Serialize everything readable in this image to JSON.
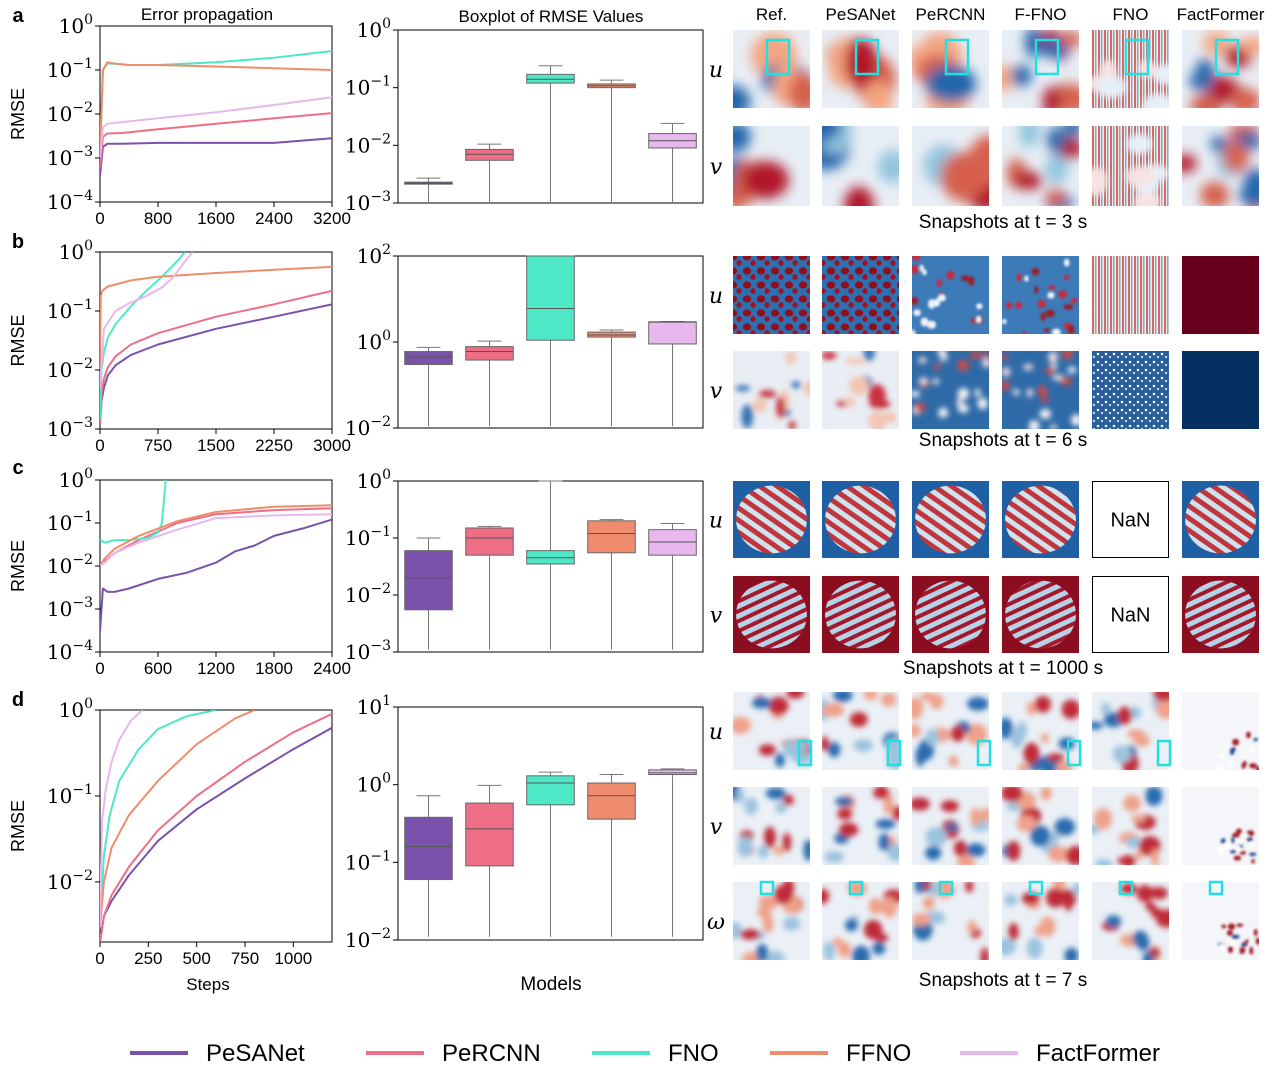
{
  "colors": {
    "PeSANet": "#7b52ab",
    "PeRCNN": "#ee6e86",
    "FNO": "#4fe8c6",
    "FFNO": "#f08c6e",
    "FactFormer": "#e8b7ee",
    "highlight_box": "#22e0e0"
  },
  "legend": [
    "PeSANet",
    "PeRCNN",
    "FNO",
    "FFNO",
    "FactFormer"
  ],
  "headers": {
    "error_propagation": "Error propagation",
    "boxplot": "Boxplot of RMSE Values",
    "snapshot_models": [
      "Ref.",
      "PeSANet",
      "PeRCNN",
      "F-FNO",
      "FNO",
      "FactFormer"
    ]
  },
  "panel_letters": [
    "a",
    "b",
    "c",
    "d"
  ],
  "ylabel": "RMSE",
  "xlabel_steps": "Steps",
  "xlabel_models": "Models",
  "snapshot_captions": [
    "Snapshots at t = 3 s",
    "Snapshots at t = 6 s",
    "Snapshots at t = 1000 s",
    "Snapshots at t = 7 s"
  ],
  "nan_label": "NaN",
  "field_symbols": {
    "u": "u",
    "v": "v",
    "w": "ω"
  },
  "chart_data": [
    {
      "type": "line",
      "panel": "a",
      "title": "Error propagation",
      "ylabel": "RMSE",
      "yscale": "log",
      "xlim": [
        0,
        3200
      ],
      "ylim": [
        0.0001,
        1
      ],
      "xticks": [
        "0",
        "800",
        "1600",
        "2400",
        "3200"
      ],
      "yticks": [
        "10^0",
        "10^-1",
        "10^-2",
        "10^-3",
        "10^-4"
      ],
      "series": [
        {
          "name": "PeSANet",
          "x": [
            0,
            40,
            100,
            300,
            800,
            1600,
            2400,
            3200
          ],
          "y": [
            0.0004,
            0.0018,
            0.0021,
            0.0021,
            0.0022,
            0.0022,
            0.0022,
            0.0028
          ]
        },
        {
          "name": "PeRCNN",
          "x": [
            0,
            40,
            100,
            300,
            800,
            1600,
            2400,
            3200
          ],
          "y": [
            0.0006,
            0.003,
            0.0036,
            0.0037,
            0.0045,
            0.006,
            0.008,
            0.0105
          ]
        },
        {
          "name": "FNO",
          "x": [
            0,
            40,
            100,
            200,
            400,
            800,
            1600,
            2400,
            3200
          ],
          "y": [
            0.0012,
            0.1,
            0.14,
            0.14,
            0.13,
            0.13,
            0.15,
            0.19,
            0.27
          ]
        },
        {
          "name": "FFNO",
          "x": [
            0,
            40,
            100,
            200,
            400,
            800,
            1600,
            2400,
            3200
          ],
          "y": [
            0.0012,
            0.1,
            0.15,
            0.14,
            0.13,
            0.13,
            0.12,
            0.11,
            0.1
          ]
        },
        {
          "name": "FactFormer",
          "x": [
            0,
            40,
            100,
            300,
            800,
            1600,
            2400,
            3200
          ],
          "y": [
            0.001,
            0.005,
            0.006,
            0.0065,
            0.008,
            0.011,
            0.016,
            0.024
          ]
        }
      ]
    },
    {
      "type": "box",
      "panel": "a",
      "title": "Boxplot of RMSE Values",
      "yscale": "log",
      "ylim": [
        0.001,
        1
      ],
      "yticks": [
        "10^0",
        "10^-1",
        "10^-2",
        "10^-3"
      ],
      "boxes": [
        {
          "name": "PeSANet",
          "min": 0.00095,
          "q1": 0.0022,
          "median": 0.0022,
          "q3": 0.0023,
          "max": 0.0027
        },
        {
          "name": "PeRCNN",
          "min": 0.00095,
          "q1": 0.0055,
          "median": 0.007,
          "q3": 0.0085,
          "max": 0.0105
        },
        {
          "name": "FNO",
          "min": 0.00095,
          "q1": 0.12,
          "median": 0.14,
          "q3": 0.17,
          "max": 0.24
        },
        {
          "name": "FFNO",
          "min": 0.00095,
          "q1": 0.1,
          "median": 0.108,
          "q3": 0.116,
          "max": 0.135
        },
        {
          "name": "FactFormer",
          "min": 0.00095,
          "q1": 0.009,
          "median": 0.012,
          "q3": 0.016,
          "max": 0.024
        }
      ]
    },
    {
      "type": "line",
      "panel": "b",
      "ylabel": "RMSE",
      "yscale": "log",
      "xlim": [
        0,
        3000
      ],
      "ylim": [
        0.001,
        1
      ],
      "xticks": [
        "0",
        "750",
        "1500",
        "2250",
        "3000"
      ],
      "yticks": [
        "10^0",
        "10^-1",
        "10^-2",
        "10^-3"
      ],
      "series": [
        {
          "name": "PeSANet",
          "x": [
            0,
            20,
            50,
            100,
            200,
            400,
            750,
            1500,
            2250,
            3000
          ],
          "y": [
            0.0012,
            0.003,
            0.005,
            0.008,
            0.012,
            0.018,
            0.027,
            0.05,
            0.08,
            0.13
          ]
        },
        {
          "name": "PeRCNN",
          "x": [
            0,
            20,
            50,
            100,
            200,
            400,
            750,
            1500,
            2250,
            3000
          ],
          "y": [
            0.0012,
            0.004,
            0.007,
            0.011,
            0.017,
            0.027,
            0.042,
            0.08,
            0.13,
            0.22
          ]
        },
        {
          "name": "FNO",
          "x": [
            0,
            20,
            50,
            100,
            200,
            400,
            600,
            800,
            1000,
            1100
          ],
          "y": [
            0.0015,
            0.01,
            0.02,
            0.035,
            0.06,
            0.12,
            0.22,
            0.38,
            0.7,
            1.0
          ]
        },
        {
          "name": "FFNO",
          "x": [
            0,
            10,
            30,
            100,
            400,
            750,
            1500,
            2250,
            3000
          ],
          "y": [
            0.01,
            0.18,
            0.22,
            0.26,
            0.33,
            0.38,
            0.44,
            0.5,
            0.56
          ]
        },
        {
          "name": "FactFormer",
          "x": [
            0,
            50,
            200,
            400,
            600,
            800,
            950,
            1100,
            1200
          ],
          "y": [
            0.005,
            0.05,
            0.1,
            0.14,
            0.18,
            0.25,
            0.38,
            0.7,
            1.0
          ]
        }
      ]
    },
    {
      "type": "box",
      "panel": "b",
      "yscale": "log",
      "ylim": [
        0.01,
        100
      ],
      "yticks": [
        "10^2",
        "10^0",
        "10^-2"
      ],
      "boxes": [
        {
          "name": "PeSANet",
          "min": 0.011,
          "q1": 0.3,
          "median": 0.45,
          "q3": 0.6,
          "max": 0.75
        },
        {
          "name": "PeRCNN",
          "min": 0.011,
          "q1": 0.38,
          "median": 0.6,
          "q3": 0.78,
          "max": 1.05
        },
        {
          "name": "FNO",
          "min": 0.011,
          "q1": 1.1,
          "median": 6.0,
          "q3": 100,
          "max": 100
        },
        {
          "name": "FFNO",
          "min": 0.011,
          "q1": 1.3,
          "median": 1.45,
          "q3": 1.7,
          "max": 1.9
        },
        {
          "name": "FactFormer",
          "min": 0.011,
          "q1": 0.9,
          "median": 2.9,
          "q3": 2.95,
          "max": 3.0
        }
      ]
    },
    {
      "type": "line",
      "panel": "c",
      "ylabel": "RMSE",
      "yscale": "log",
      "xlim": [
        0,
        2400
      ],
      "ylim": [
        0.0001,
        1
      ],
      "xticks": [
        "0",
        "600",
        "1200",
        "1800",
        "2400"
      ],
      "yticks": [
        "10^0",
        "10^-1",
        "10^-2",
        "10^-3",
        "10^-4"
      ],
      "series": [
        {
          "name": "PeSANet",
          "x": [
            0,
            30,
            80,
            150,
            300,
            600,
            900,
            1200,
            1400,
            1600,
            1800,
            2100,
            2400
          ],
          "y": [
            0.0003,
            0.003,
            0.0025,
            0.0025,
            0.003,
            0.005,
            0.007,
            0.012,
            0.022,
            0.03,
            0.05,
            0.075,
            0.12
          ]
        },
        {
          "name": "PeRCNN",
          "x": [
            0,
            50,
            150,
            400,
            800,
            1200,
            1800,
            2400
          ],
          "y": [
            0.01,
            0.013,
            0.02,
            0.04,
            0.1,
            0.16,
            0.2,
            0.22
          ]
        },
        {
          "name": "FNO",
          "x": [
            0,
            50,
            150,
            300,
            500,
            600,
            640,
            680
          ],
          "y": [
            0.04,
            0.035,
            0.04,
            0.04,
            0.045,
            0.06,
            0.1,
            1.0
          ]
        },
        {
          "name": "FFNO",
          "x": [
            0,
            50,
            150,
            400,
            800,
            1200,
            1800,
            2400
          ],
          "y": [
            0.01,
            0.015,
            0.025,
            0.05,
            0.11,
            0.18,
            0.24,
            0.26
          ]
        },
        {
          "name": "FactFormer",
          "x": [
            0,
            50,
            150,
            400,
            800,
            1200,
            1800,
            2400
          ],
          "y": [
            0.01,
            0.012,
            0.02,
            0.035,
            0.07,
            0.13,
            0.15,
            0.16
          ]
        }
      ]
    },
    {
      "type": "box",
      "panel": "c",
      "yscale": "log",
      "ylim": [
        0.001,
        1
      ],
      "yticks": [
        "10^0",
        "10^-1",
        "10^-2",
        "10^-3"
      ],
      "boxes": [
        {
          "name": "PeSANet",
          "min": 0.0011,
          "q1": 0.0055,
          "median": 0.02,
          "q3": 0.06,
          "max": 0.1
        },
        {
          "name": "PeRCNN",
          "min": 0.0011,
          "q1": 0.05,
          "median": 0.1,
          "q3": 0.15,
          "max": 0.16
        },
        {
          "name": "FNO",
          "min": 0.0011,
          "q1": 0.035,
          "median": 0.045,
          "q3": 0.06,
          "max": 1.0
        },
        {
          "name": "FFNO",
          "min": 0.0011,
          "q1": 0.055,
          "median": 0.12,
          "q3": 0.2,
          "max": 0.21
        },
        {
          "name": "FactFormer",
          "min": 0.0011,
          "q1": 0.05,
          "median": 0.085,
          "q3": 0.14,
          "max": 0.18
        }
      ]
    },
    {
      "type": "line",
      "panel": "d",
      "ylabel": "RMSE",
      "xlabel": "Steps",
      "yscale": "log",
      "xlim": [
        0,
        1200
      ],
      "ylim": [
        0.002,
        1
      ],
      "xticks": [
        "0",
        "250",
        "500",
        "750",
        "1000"
      ],
      "yticks": [
        "10^0",
        "10^-1",
        "10^-2"
      ],
      "series": [
        {
          "name": "PeSANet",
          "x": [
            0,
            20,
            60,
            150,
            300,
            500,
            750,
            1000,
            1200
          ],
          "y": [
            0.002,
            0.004,
            0.006,
            0.012,
            0.03,
            0.07,
            0.16,
            0.35,
            0.62
          ]
        },
        {
          "name": "PeRCNN",
          "x": [
            0,
            20,
            60,
            150,
            300,
            500,
            750,
            1000,
            1200
          ],
          "y": [
            0.002,
            0.004,
            0.007,
            0.015,
            0.04,
            0.1,
            0.25,
            0.55,
            0.9
          ]
        },
        {
          "name": "FNO",
          "x": [
            0,
            20,
            50,
            100,
            200,
            300,
            450,
            600
          ],
          "y": [
            0.003,
            0.02,
            0.06,
            0.15,
            0.35,
            0.6,
            0.85,
            1.0
          ]
        },
        {
          "name": "FFNO",
          "x": [
            0,
            20,
            60,
            150,
            300,
            500,
            700,
            800
          ],
          "y": [
            0.003,
            0.01,
            0.025,
            0.06,
            0.15,
            0.4,
            0.8,
            1.0
          ]
        },
        {
          "name": "FactFormer",
          "x": [
            0,
            10,
            30,
            60,
            100,
            160,
            220
          ],
          "y": [
            0.003,
            0.05,
            0.12,
            0.25,
            0.45,
            0.75,
            1.0
          ]
        }
      ]
    },
    {
      "type": "box",
      "panel": "d",
      "xlabel": "Models",
      "yscale": "log",
      "ylim": [
        0.01,
        10
      ],
      "yticks": [
        "10^1",
        "10^0",
        "10^-1",
        "10^-2"
      ],
      "boxes": [
        {
          "name": "PeSANet",
          "min": 0.011,
          "q1": 0.06,
          "median": 0.16,
          "q3": 0.38,
          "max": 0.72
        },
        {
          "name": "PeRCNN",
          "min": 0.011,
          "q1": 0.09,
          "median": 0.27,
          "q3": 0.58,
          "max": 0.98
        },
        {
          "name": "FNO",
          "min": 0.011,
          "q1": 0.55,
          "median": 1.05,
          "q3": 1.3,
          "max": 1.45
        },
        {
          "name": "FFNO",
          "min": 0.011,
          "q1": 0.36,
          "median": 0.72,
          "q3": 1.05,
          "max": 1.35
        },
        {
          "name": "FactFormer",
          "min": 0.011,
          "q1": 1.35,
          "median": 1.42,
          "q3": 1.55,
          "max": 1.6
        }
      ]
    }
  ]
}
